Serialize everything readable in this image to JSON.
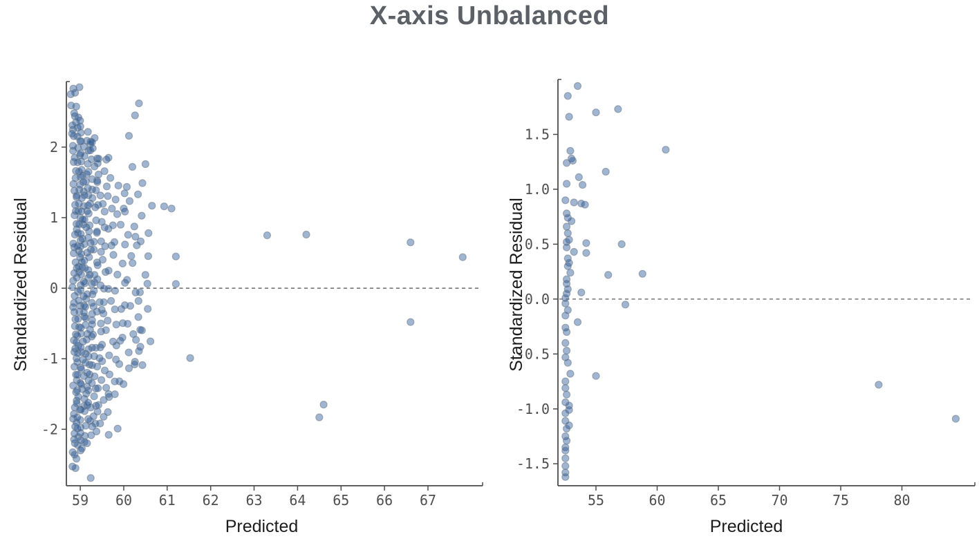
{
  "page_title": "X-axis Unbalanced",
  "style": {
    "background": "#ffffff",
    "title_color": "#5b6167",
    "axis_color": "#4a4a4a",
    "tick_label_color": "#4f4f4f",
    "axis_label_color": "#1c1c1c",
    "zero_line_color": "#7e7e7e",
    "point_fill": "#1c4f92",
    "point_fill_opacity": 0.42,
    "point_stroke": "#6f7e8e",
    "point_stroke_opacity": 0.6,
    "point_radius": 5
  },
  "chart_data": [
    {
      "type": "scatter",
      "position": "left",
      "title": "",
      "xlabel": "Predicted",
      "ylabel": "Standardized Residual",
      "xlim": [
        58.68,
        68.13
      ],
      "ylim": [
        -2.8,
        2.93
      ],
      "xticks": [
        59,
        60,
        61,
        62,
        63,
        64,
        65,
        66,
        67
      ],
      "xtick_labels": [
        "59",
        "60",
        "61",
        "62",
        "63",
        "64",
        "65",
        "66",
        "67"
      ],
      "yticks": [
        -2,
        -1,
        0,
        1,
        2
      ],
      "ytick_labels": [
        "-2",
        "-1",
        "0",
        "1",
        "2"
      ],
      "zero_reference_line": 0,
      "grid": false,
      "legend": false,
      "note": "~410 residual points heavily overplotted near predicted=59; dense mass encoded as columns plus explicit outliers",
      "points": [
        [
          58.84,
          2.83
        ],
        [
          58.98,
          2.85
        ],
        [
          58.78,
          2.75
        ],
        [
          58.88,
          2.77
        ],
        [
          58.79,
          2.59
        ],
        [
          60.35,
          2.62
        ],
        [
          60.26,
          2.45
        ],
        [
          58.82,
          2.31
        ],
        [
          58.81,
          2.19
        ],
        [
          59.24,
          2.08
        ],
        [
          59.33,
          2.13
        ],
        [
          60.12,
          2.16
        ],
        [
          59.27,
          2.07
        ],
        [
          59.65,
          1.85
        ],
        [
          59.4,
          1.77
        ],
        [
          60.5,
          1.76
        ],
        [
          60.2,
          1.72
        ],
        [
          60.43,
          1.49
        ],
        [
          60.65,
          1.17
        ],
        [
          61.1,
          1.13
        ],
        [
          60.93,
          1.16
        ],
        [
          60.0,
          1.13
        ],
        [
          59.85,
          1.05
        ],
        [
          60.27,
          0.73
        ],
        [
          61.2,
          0.45
        ],
        [
          61.2,
          0.06
        ],
        [
          63.3,
          0.75
        ],
        [
          64.2,
          0.76
        ],
        [
          66.6,
          0.65
        ],
        [
          67.8,
          0.44
        ],
        [
          66.6,
          -0.48
        ],
        [
          61.53,
          -0.99
        ],
        [
          64.6,
          -1.65
        ],
        [
          64.5,
          -1.83
        ],
        [
          60.15,
          -0.25
        ],
        [
          60.34,
          -0.18
        ],
        [
          60.38,
          -0.59
        ],
        [
          60.22,
          -0.65
        ],
        [
          59.97,
          -0.7
        ],
        [
          60.35,
          -0.89
        ],
        [
          60.25,
          -1.08
        ],
        [
          60.43,
          -1.09
        ],
        [
          59.9,
          -1.32
        ],
        [
          59.65,
          -1.5
        ],
        [
          59.86,
          -1.99
        ],
        [
          59.35,
          -1.92
        ],
        [
          59.1,
          -2.18
        ],
        [
          58.87,
          -2.36
        ],
        [
          58.89,
          -2.55
        ],
        [
          59.24,
          -2.69
        ]
      ],
      "dense_columns": [
        {
          "x": 58.87,
          "n": 56,
          "y0": -2.5,
          "y1": 2.6,
          "jx": 0.05,
          "jy": 0.028
        },
        {
          "x": 58.96,
          "n": 50,
          "y0": -2.3,
          "y1": 2.45,
          "jx": 0.05,
          "jy": 0.03
        },
        {
          "x": 59.05,
          "n": 46,
          "y0": -2.25,
          "y1": 2.3,
          "jx": 0.05,
          "jy": 0.03
        },
        {
          "x": 59.14,
          "n": 40,
          "y0": -2.2,
          "y1": 2.2,
          "jx": 0.05,
          "jy": 0.03
        },
        {
          "x": 59.23,
          "n": 34,
          "y0": -2.1,
          "y1": 2.05,
          "jx": 0.05,
          "jy": 0.035
        },
        {
          "x": 59.33,
          "n": 28,
          "y0": -2.0,
          "y1": 2.0,
          "jx": 0.06,
          "jy": 0.04
        },
        {
          "x": 59.44,
          "n": 24,
          "y0": -1.95,
          "y1": 1.8,
          "jx": 0.06,
          "jy": 0.045
        },
        {
          "x": 59.56,
          "n": 19,
          "y0": -1.8,
          "y1": 1.85,
          "jx": 0.06,
          "jy": 0.05
        },
        {
          "x": 59.69,
          "n": 15,
          "y0": -2.05,
          "y1": 1.6,
          "jx": 0.07,
          "jy": 0.06
        },
        {
          "x": 59.82,
          "n": 13,
          "y0": -1.55,
          "y1": 1.45,
          "jx": 0.07,
          "jy": 0.06
        },
        {
          "x": 59.96,
          "n": 11,
          "y0": -1.35,
          "y1": 1.4,
          "jx": 0.07,
          "jy": 0.07
        },
        {
          "x": 60.1,
          "n": 9,
          "y0": -1.2,
          "y1": 1.5,
          "jx": 0.08,
          "jy": 0.08
        },
        {
          "x": 60.26,
          "n": 8,
          "y0": -1.1,
          "y1": 1.3,
          "jx": 0.08,
          "jy": 0.09
        },
        {
          "x": 60.44,
          "n": 6,
          "y0": -0.9,
          "y1": 1.0,
          "jx": 0.08,
          "jy": 0.1
        },
        {
          "x": 60.6,
          "n": 5,
          "y0": -0.75,
          "y1": 0.8,
          "jx": 0.09,
          "jy": 0.1
        }
      ]
    },
    {
      "type": "scatter",
      "position": "right",
      "title": "",
      "xlabel": "Predicted",
      "ylabel": "Standardized Residual",
      "xlim": [
        51.89,
        85.51
      ],
      "ylim": [
        -1.7,
        2.0
      ],
      "xticks": [
        55,
        60,
        65,
        70,
        75,
        80
      ],
      "xtick_labels": [
        "55",
        "60",
        "65",
        "70",
        "75",
        "80"
      ],
      "yticks": [
        -1.5,
        -1.0,
        -0.5,
        0.0,
        0.5,
        1.0,
        1.5
      ],
      "ytick_labels": [
        "-1.5",
        "-1.0",
        "-0.5",
        "0.0",
        "0.5",
        "1.0",
        "1.5"
      ],
      "zero_reference_line": 0,
      "grid": false,
      "legend": false,
      "note": "Sparse residual plot; column of points near predicted=52.5-54 with far outliers at 78.1 and 84.4",
      "points": [
        [
          53.5,
          1.94
        ],
        [
          52.7,
          1.85
        ],
        [
          55.0,
          1.7
        ],
        [
          56.8,
          1.73
        ],
        [
          52.8,
          1.66
        ],
        [
          60.7,
          1.36
        ],
        [
          52.9,
          1.35
        ],
        [
          53.0,
          1.28
        ],
        [
          52.6,
          1.24
        ],
        [
          53.1,
          1.26
        ],
        [
          55.8,
          1.16
        ],
        [
          53.6,
          1.11
        ],
        [
          53.9,
          1.04
        ],
        [
          52.6,
          1.05
        ],
        [
          52.5,
          0.9
        ],
        [
          53.2,
          0.88
        ],
        [
          54.1,
          0.86
        ],
        [
          53.8,
          0.87
        ],
        [
          52.6,
          0.78
        ],
        [
          52.7,
          0.74
        ],
        [
          53.0,
          0.71
        ],
        [
          52.6,
          0.66
        ],
        [
          52.7,
          0.6
        ],
        [
          52.8,
          0.54
        ],
        [
          52.6,
          0.52
        ],
        [
          54.2,
          0.51
        ],
        [
          57.1,
          0.5
        ],
        [
          52.6,
          0.47
        ],
        [
          53.2,
          0.43
        ],
        [
          54.2,
          0.42
        ],
        [
          52.7,
          0.37
        ],
        [
          52.8,
          0.33
        ],
        [
          52.7,
          0.3
        ],
        [
          56.0,
          0.22
        ],
        [
          58.8,
          0.23
        ],
        [
          52.9,
          0.24
        ],
        [
          52.6,
          0.18
        ],
        [
          52.6,
          0.14
        ],
        [
          52.7,
          0.09
        ],
        [
          53.8,
          0.06
        ],
        [
          52.6,
          0.05
        ],
        [
          52.5,
          0.01
        ],
        [
          52.5,
          -0.04
        ],
        [
          57.4,
          -0.05
        ],
        [
          52.7,
          -0.1
        ],
        [
          52.5,
          -0.15
        ],
        [
          53.5,
          -0.21
        ],
        [
          52.5,
          -0.26
        ],
        [
          52.6,
          -0.3
        ],
        [
          52.5,
          -0.4
        ],
        [
          52.6,
          -0.47
        ],
        [
          52.5,
          -0.53
        ],
        [
          52.7,
          -0.58
        ],
        [
          52.9,
          -0.68
        ],
        [
          55.0,
          -0.7
        ],
        [
          52.5,
          -0.75
        ],
        [
          52.5,
          -0.81
        ],
        [
          52.6,
          -0.87
        ],
        [
          52.5,
          -0.94
        ],
        [
          52.8,
          -0.97
        ],
        [
          52.8,
          -1.01
        ],
        [
          52.5,
          -1.04
        ],
        [
          52.5,
          -1.11
        ],
        [
          52.8,
          -1.15
        ],
        [
          52.6,
          -1.18
        ],
        [
          52.5,
          -1.25
        ],
        [
          52.6,
          -1.29
        ],
        [
          52.5,
          -1.35
        ],
        [
          52.5,
          -1.38
        ],
        [
          52.5,
          -1.45
        ],
        [
          52.5,
          -1.52
        ],
        [
          52.5,
          -1.58
        ],
        [
          52.5,
          -1.62
        ],
        [
          78.1,
          -0.78
        ],
        [
          84.4,
          -1.09
        ]
      ]
    }
  ]
}
